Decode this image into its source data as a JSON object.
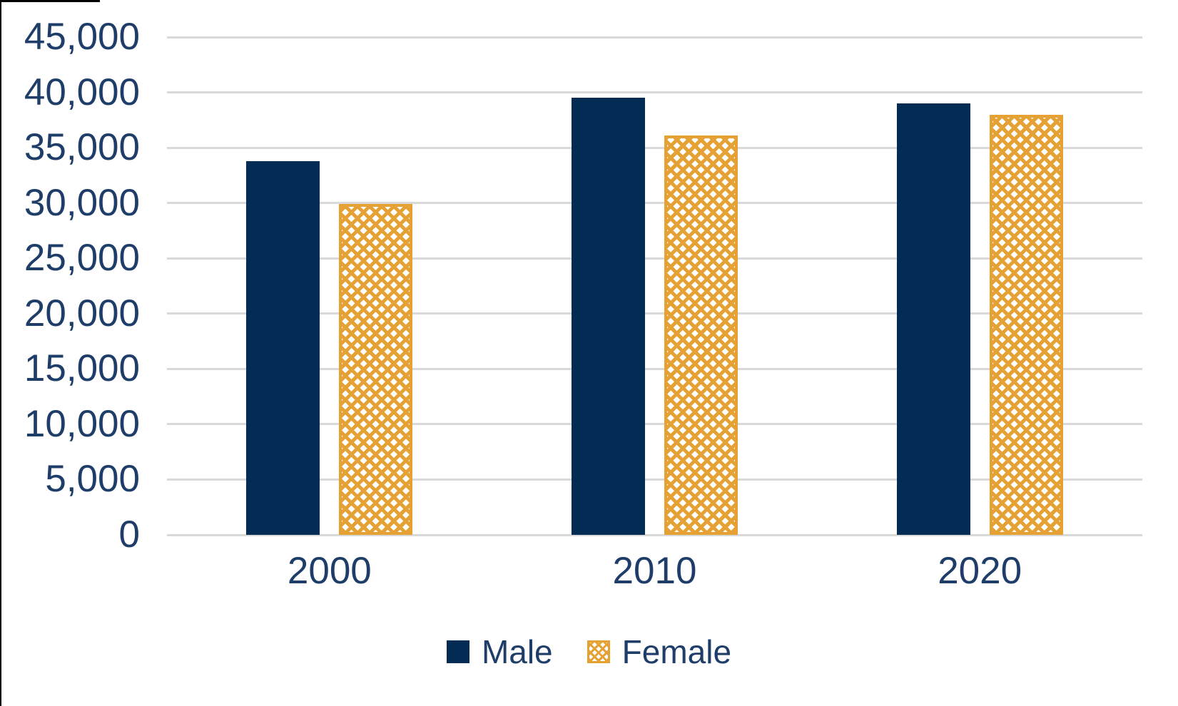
{
  "chart_data": {
    "type": "bar",
    "title": "",
    "xlabel": "",
    "ylabel": "",
    "categories": [
      "2000",
      "2010",
      "2020"
    ],
    "series": [
      {
        "name": "Male",
        "values": [
          33800,
          39500,
          39000
        ],
        "color": "#032C55",
        "fill": "solid"
      },
      {
        "name": "Female",
        "values": [
          29900,
          36100,
          38000
        ],
        "color": "#E5A133",
        "fill": "dotted-diamond-pattern"
      }
    ],
    "ylim": [
      0,
      45000
    ],
    "ytick_interval": 5000,
    "ytick_labels": [
      "0",
      "5,000",
      "10,000",
      "15,000",
      "20,000",
      "25,000",
      "30,000",
      "35,000",
      "40,000",
      "45,000"
    ],
    "grid": true,
    "gridline_color": "#D9D9D9",
    "axis_text_color": "#1E3D68",
    "background_color": "#FFFFFF",
    "legend_position": "bottom",
    "legend": [
      {
        "label": "Male",
        "swatch": "navy-solid-square"
      },
      {
        "label": "Female",
        "swatch": "gold-dotted-diamond-square"
      }
    ]
  }
}
